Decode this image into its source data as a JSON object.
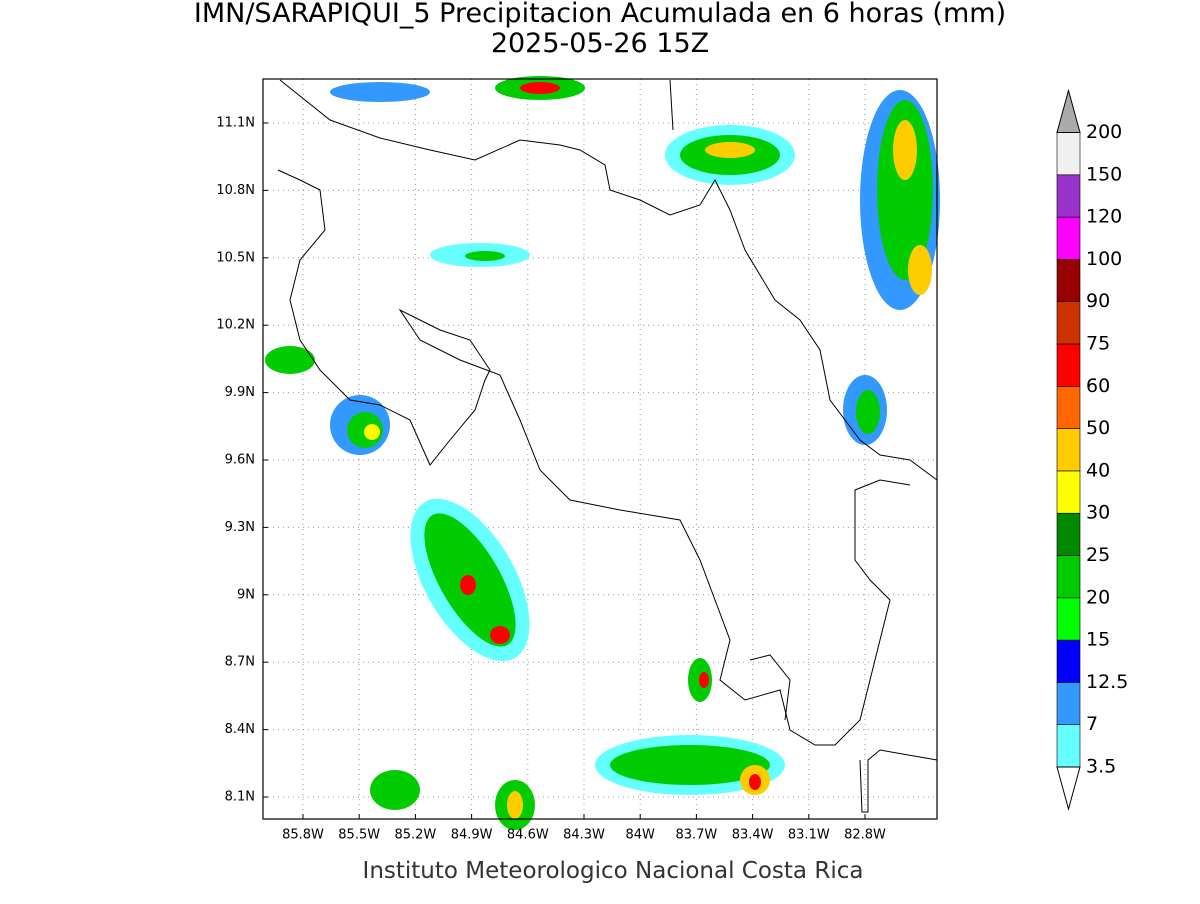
{
  "title": "IMN/SARAPIQUI_5 Precipitacion Acumulada en 6 horas (mm)",
  "subtitle": "2025-05-26 15Z",
  "footer": "Instituto Meteorologico Nacional Costa Rica",
  "lat_labels": [
    "11.1N",
    "10.8N",
    "10.5N",
    "10.2N",
    "9.9N",
    "9.6N",
    "9.3N",
    "9N",
    "8.7N",
    "8.4N",
    "8.1N"
  ],
  "lon_labels": [
    "85.8W",
    "85.5W",
    "85.2W",
    "84.9W",
    "84.6W",
    "84.3W",
    "84W",
    "83.7W",
    "83.4W",
    "83.1W",
    "82.8W"
  ],
  "colorbar": {
    "labels": [
      "3.5",
      "7",
      "12.5",
      "15",
      "20",
      "25",
      "30",
      "40",
      "50",
      "60",
      "75",
      "90",
      "100",
      "120",
      "150",
      "200"
    ],
    "colors": [
      "#66ffff",
      "#3399ff",
      "#0000ff",
      "#00ff00",
      "#00cc00",
      "#008800",
      "#ffff00",
      "#ffcc00",
      "#ff6600",
      "#ff0000",
      "#cc3300",
      "#990000",
      "#ff00ff",
      "#9933cc",
      "#f0f0f0"
    ],
    "under_color": "#ffffff",
    "over_color": "#aaaaaa"
  }
}
